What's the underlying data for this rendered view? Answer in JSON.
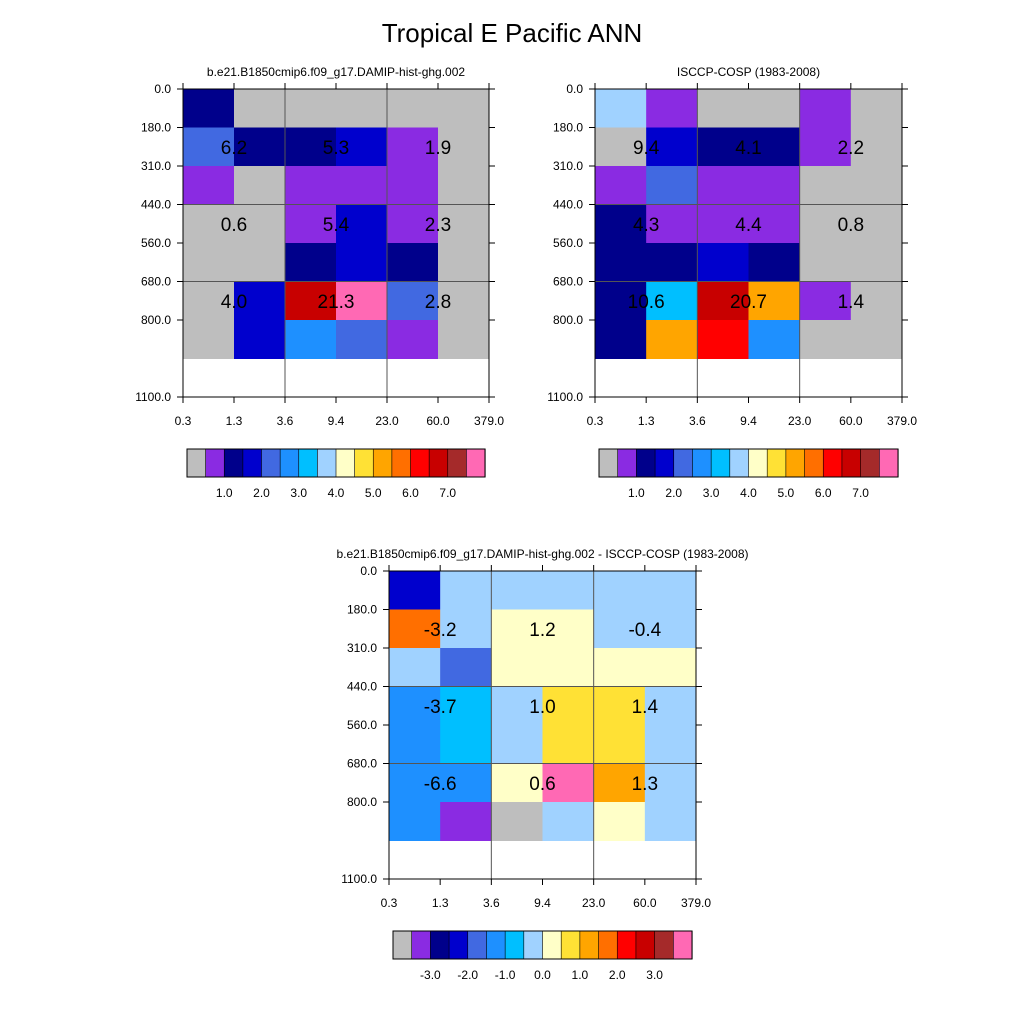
{
  "title": "Tropical E Pacific ANN",
  "colors": {
    "abs_scale": [
      "#bebebe",
      "#8a2be2",
      "#00008b",
      "#0000cd",
      "#4169e1",
      "#1e90ff",
      "#00bfff",
      "#a0d2ff",
      "#ffffc8",
      "#ffe135",
      "#ffa500",
      "#ff6f00",
      "#ff0000",
      "#c80000",
      "#a52a2a",
      "#ff69b4"
    ],
    "diff_scale": [
      "#bebebe",
      "#8a2be2",
      "#00008b",
      "#0000cd",
      "#4169e1",
      "#1e90ff",
      "#00bfff",
      "#a0d2ff",
      "#ffffc8",
      "#ffe135",
      "#ffa500",
      "#ff6f00",
      "#ff0000",
      "#c80000",
      "#a52a2a",
      "#ff69b4"
    ],
    "grid_line": "#555555",
    "axis": "#000000"
  },
  "chart_data": [
    {
      "type": "heatmap",
      "title": "b.e21.B1850cmip6.f09_g17.DAMIP-hist-ghg.002",
      "x_ticks": [
        "0.3",
        "1.3",
        "3.6",
        "9.4",
        "23.0",
        "60.0",
        "379.0"
      ],
      "y_ticks": [
        "0.0",
        "180.0",
        "310.0",
        "440.0",
        "560.0",
        "680.0",
        "800.0",
        "1100.0"
      ],
      "cell_color_index": [
        [
          2,
          0,
          0,
          0,
          0,
          0
        ],
        [
          4,
          2,
          2,
          3,
          1,
          0
        ],
        [
          1,
          0,
          1,
          1,
          1,
          0
        ],
        [
          0,
          0,
          1,
          3,
          1,
          0
        ],
        [
          0,
          0,
          2,
          3,
          2,
          0
        ],
        [
          0,
          3,
          13,
          15,
          4,
          0
        ],
        [
          0,
          3,
          5,
          4,
          1,
          0
        ]
      ],
      "labels": [
        {
          "col": 1,
          "row": 1,
          "text": "6.2"
        },
        {
          "col": 3,
          "row": 1,
          "text": "5.3"
        },
        {
          "col": 5,
          "row": 1,
          "text": "1.9"
        },
        {
          "col": 1,
          "row": 3,
          "text": "0.6"
        },
        {
          "col": 3,
          "row": 3,
          "text": "5.4"
        },
        {
          "col": 5,
          "row": 3,
          "text": "2.3"
        },
        {
          "col": 1,
          "row": 5,
          "text": "4.0"
        },
        {
          "col": 3,
          "row": 5,
          "text": "21.3"
        },
        {
          "col": 5,
          "row": 5,
          "text": "2.8"
        }
      ],
      "colorbar_labels": [
        "1.0",
        "2.0",
        "3.0",
        "4.0",
        "5.0",
        "6.0",
        "7.0"
      ],
      "colorbar_scale": "abs_scale"
    },
    {
      "type": "heatmap",
      "title": "ISCCP-COSP (1983-2008)",
      "x_ticks": [
        "0.3",
        "1.3",
        "3.6",
        "9.4",
        "23.0",
        "60.0",
        "379.0"
      ],
      "y_ticks": [
        "0.0",
        "180.0",
        "310.0",
        "440.0",
        "560.0",
        "680.0",
        "800.0",
        "1100.0"
      ],
      "cell_color_index": [
        [
          7,
          1,
          0,
          0,
          1,
          0
        ],
        [
          0,
          3,
          2,
          2,
          1,
          0
        ],
        [
          1,
          4,
          1,
          1,
          0,
          0
        ],
        [
          2,
          1,
          1,
          1,
          0,
          0
        ],
        [
          2,
          2,
          3,
          2,
          0,
          0
        ],
        [
          2,
          6,
          13,
          10,
          1,
          0
        ],
        [
          2,
          10,
          12,
          5,
          0,
          0
        ]
      ],
      "labels": [
        {
          "col": 1,
          "row": 1,
          "text": "9.4"
        },
        {
          "col": 3,
          "row": 1,
          "text": "4.1"
        },
        {
          "col": 5,
          "row": 1,
          "text": "2.2"
        },
        {
          "col": 1,
          "row": 3,
          "text": "4.3"
        },
        {
          "col": 3,
          "row": 3,
          "text": "4.4"
        },
        {
          "col": 5,
          "row": 3,
          "text": "0.8"
        },
        {
          "col": 1,
          "row": 5,
          "text": "10.6"
        },
        {
          "col": 3,
          "row": 5,
          "text": "20.7"
        },
        {
          "col": 5,
          "row": 5,
          "text": "1.4"
        }
      ],
      "colorbar_labels": [
        "1.0",
        "2.0",
        "3.0",
        "4.0",
        "5.0",
        "6.0",
        "7.0"
      ],
      "colorbar_scale": "abs_scale"
    },
    {
      "type": "heatmap",
      "title": "b.e21.B1850cmip6.f09_g17.DAMIP-hist-ghg.002 - ISCCP-COSP (1983-2008)",
      "x_ticks": [
        "0.3",
        "1.3",
        "3.6",
        "9.4",
        "23.0",
        "60.0",
        "379.0"
      ],
      "y_ticks": [
        "0.0",
        "180.0",
        "310.0",
        "440.0",
        "560.0",
        "680.0",
        "800.0",
        "1100.0"
      ],
      "cell_color_index": [
        [
          3,
          7,
          7,
          7,
          7,
          7
        ],
        [
          11,
          7,
          8,
          8,
          7,
          7
        ],
        [
          7,
          4,
          8,
          8,
          8,
          8
        ],
        [
          5,
          6,
          7,
          9,
          9,
          7
        ],
        [
          5,
          6,
          7,
          9,
          9,
          7
        ],
        [
          5,
          5,
          8,
          15,
          10,
          7
        ],
        [
          5,
          1,
          0,
          7,
          8,
          7
        ]
      ],
      "labels": [
        {
          "col": 1,
          "row": 1,
          "text": "-3.2"
        },
        {
          "col": 3,
          "row": 1,
          "text": "1.2"
        },
        {
          "col": 5,
          "row": 1,
          "text": "-0.4"
        },
        {
          "col": 1,
          "row": 3,
          "text": "-3.7"
        },
        {
          "col": 3,
          "row": 3,
          "text": "1.0"
        },
        {
          "col": 5,
          "row": 3,
          "text": "1.4"
        },
        {
          "col": 1,
          "row": 5,
          "text": "-6.6"
        },
        {
          "col": 3,
          "row": 5,
          "text": "0.6"
        },
        {
          "col": 5,
          "row": 5,
          "text": "1.3"
        }
      ],
      "colorbar_labels": [
        "-3.0",
        "-2.0",
        "-1.0",
        "0.0",
        "1.0",
        "2.0",
        "3.0"
      ],
      "colorbar_scale": "diff_scale"
    }
  ]
}
